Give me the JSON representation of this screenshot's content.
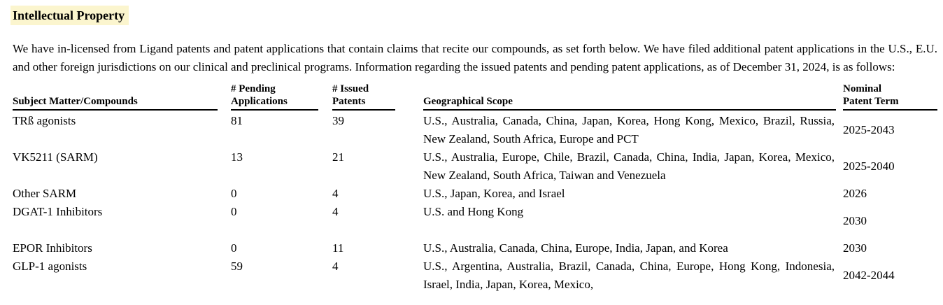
{
  "page": {
    "heading": "Intellectual Property",
    "heading_highlight_color": "#FBF5CE",
    "paragraph": "We have in-licensed from Ligand patents and patent applications that contain claims that recite our compounds, as set forth below. We have filed additional patent applications in the U.S., E.U. and other foreign jurisdictions on our clinical and preclinical programs. Information regarding the issued patents and pending patent applications, as of December 31, 2024, is as follows:"
  },
  "table": {
    "columns": [
      {
        "line1": "Subject Matter/Compounds",
        "line2": ""
      },
      {
        "line1": "# Pending",
        "line2": "Applications"
      },
      {
        "line1": "# Issued",
        "line2": "Patents"
      },
      {
        "line1": "Geographical Scope",
        "line2": ""
      },
      {
        "line1": "Nominal",
        "line2": "Patent Term"
      }
    ],
    "rows": [
      {
        "subject": "TRß agonists",
        "pending": "81",
        "issued": "39",
        "scope": "U.S., Australia, Canada, China, Japan, Korea, Hong Kong, Mexico, Brazil, Russia, New Zealand, South Africa, Europe and PCT",
        "term": "2025-2043"
      },
      {
        "subject": "VK5211 (SARM)",
        "pending": "13",
        "issued": "21",
        "scope": "U.S., Australia, Europe, Chile, Brazil, Canada, China, India, Japan, Korea, Mexico, New Zealand, South Africa, Taiwan and Venezuela",
        "term": "2025-2040"
      },
      {
        "subject": "Other SARM",
        "pending": "0",
        "issued": "4",
        "scope": "U.S., Japan, Korea, and Israel",
        "term": "2026"
      },
      {
        "subject": "DGAT-1 Inhibitors",
        "pending": "0",
        "issued": "4",
        "scope": "U.S. and Hong Kong",
        "term": "2030"
      },
      {
        "subject": "EPOR Inhibitors",
        "pending": "0",
        "issued": "11",
        "scope": "U.S., Australia, Canada, China, Europe, India, Japan, and Korea",
        "term": "2030"
      },
      {
        "subject": "GLP-1 agonists",
        "pending": "59",
        "issued": "4",
        "scope": "U.S., Argentina, Australia, Brazil, Canada, China, Europe, Hong Kong, Indonesia, Israel, India, Japan, Korea, Mexico,",
        "term": "2042-2044"
      }
    ]
  }
}
